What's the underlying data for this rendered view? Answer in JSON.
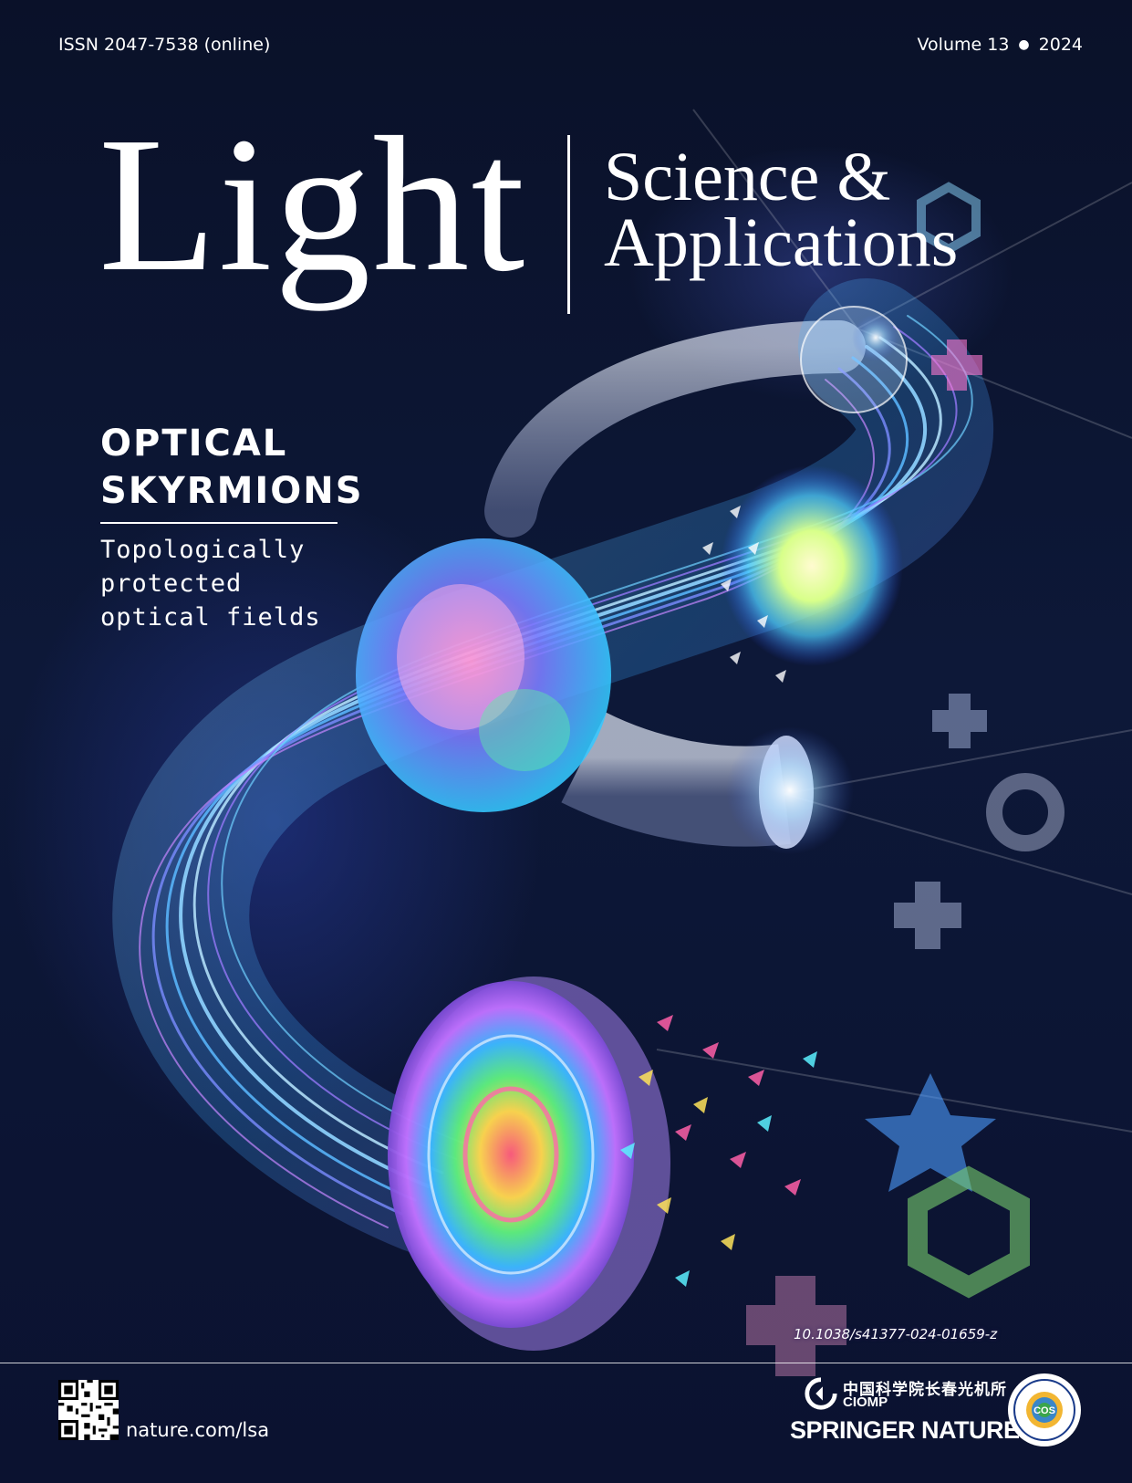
{
  "header": {
    "issn": "ISSN 2047-7538  (online)",
    "volume": "Volume 13",
    "year": "2024"
  },
  "masthead": {
    "title_main": "Light",
    "title_sub_line1": "Science &",
    "title_sub_line2": "Applications"
  },
  "feature": {
    "headline_line1": "OPTICAL",
    "headline_line2": "SKYRMIONS",
    "sub_line1": "Topologically",
    "sub_line2": "protected",
    "sub_line3": "optical fields"
  },
  "doi": "10.1038/s41377-024-01659-z",
  "footer": {
    "url": "nature.com/lsa",
    "ciomp_cn": "中国科学院长春光机所",
    "ciomp_en": "CIOMP",
    "publisher": "SPRINGER NATURE",
    "seal_text": "COS"
  },
  "colors": {
    "background": "#0b1230",
    "text": "#ffffff",
    "beam_blue": "#3aa8ff",
    "beam_violet": "#a266ff"
  }
}
